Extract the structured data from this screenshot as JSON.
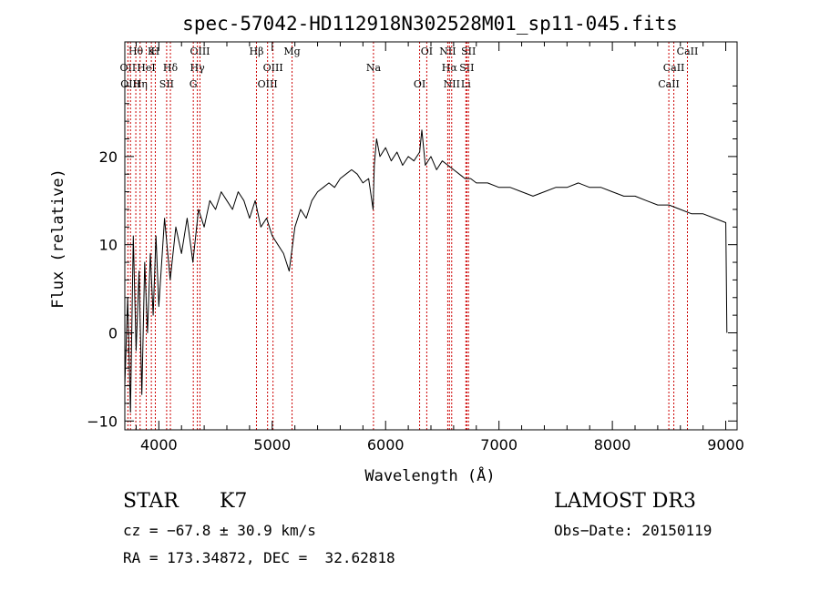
{
  "chart_data": {
    "type": "line",
    "title": "spec-57042-HD112918N302528M01_sp11-045.fits",
    "xlabel": "Wavelength (Å)",
    "ylabel": "Flux (relative)",
    "xlim": [
      3700,
      9100
    ],
    "ylim": [
      -11,
      33
    ],
    "xticks": [
      4000,
      5000,
      6000,
      7000,
      8000,
      9000
    ],
    "yticks": [
      -10,
      0,
      10,
      20
    ],
    "xtick_labels": [
      "4000",
      "5000",
      "6000",
      "7000",
      "8000",
      "9000"
    ],
    "ytick_labels": [
      "−10",
      "0",
      "10",
      "20"
    ],
    "grid": false,
    "line_color": "#000000",
    "marker_color": "#cc0000",
    "series": [
      {
        "name": "flux",
        "x": [
          3700,
          3725,
          3750,
          3775,
          3800,
          3825,
          3850,
          3875,
          3900,
          3925,
          3950,
          3975,
          4000,
          4050,
          4100,
          4150,
          4200,
          4250,
          4300,
          4350,
          4400,
          4450,
          4500,
          4550,
          4600,
          4650,
          4700,
          4750,
          4800,
          4850,
          4900,
          4950,
          5000,
          5050,
          5100,
          5150,
          5200,
          5250,
          5300,
          5350,
          5400,
          5450,
          5500,
          5550,
          5600,
          5650,
          5700,
          5750,
          5800,
          5850,
          5890,
          5900,
          5920,
          5950,
          6000,
          6050,
          6100,
          6150,
          6200,
          6250,
          6300,
          6320,
          6350,
          6400,
          6450,
          6500,
          6550,
          6600,
          6650,
          6700,
          6750,
          6800,
          6900,
          7000,
          7100,
          7200,
          7300,
          7400,
          7500,
          7600,
          7700,
          7800,
          7900,
          8000,
          8100,
          8200,
          8300,
          8400,
          8500,
          8600,
          8700,
          8800,
          8900,
          9000,
          9010
        ],
        "y": [
          -6,
          4,
          -9,
          11,
          -2,
          7,
          -7,
          8,
          0,
          9,
          2,
          11,
          3,
          13,
          6,
          12,
          9,
          13,
          8,
          14,
          12,
          15,
          14,
          16,
          15,
          14,
          16,
          15,
          13,
          15,
          12,
          13,
          11,
          10,
          9,
          7,
          12,
          14,
          13,
          15,
          16,
          16.5,
          17,
          16.5,
          17.5,
          18,
          18.5,
          18,
          17,
          17.5,
          14,
          19,
          22,
          20,
          21,
          19.5,
          20.5,
          19,
          20,
          19.5,
          20.5,
          23,
          19,
          20,
          18.5,
          19.5,
          19,
          18.5,
          18,
          17.5,
          17.5,
          17,
          17,
          16.5,
          16.5,
          16,
          15.5,
          16,
          16.5,
          16.5,
          17,
          16.5,
          16.5,
          16,
          15.5,
          15.5,
          15,
          14.5,
          14.5,
          14,
          13.5,
          13.5,
          13,
          12.5,
          0
        ]
      }
    ],
    "lines": [
      {
        "label": "Hθ",
        "x": 3797
      },
      {
        "label": "OII",
        "x": 3727
      },
      {
        "label": "OIII",
        "x": 3750
      },
      {
        "label": "K",
        "x": 3934
      },
      {
        "label": "HeI",
        "x": 3889
      },
      {
        "label": "Hη",
        "x": 3835
      },
      {
        "label": "H",
        "x": 3969
      },
      {
        "label": "Hδ",
        "x": 4102
      },
      {
        "label": "SII",
        "x": 4069
      },
      {
        "label": "OIII",
        "x": 4363
      },
      {
        "label": "Hγ",
        "x": 4340
      },
      {
        "label": "G",
        "x": 4304
      },
      {
        "label": "Hβ",
        "x": 4861
      },
      {
        "label": "OIII",
        "x": 5007
      },
      {
        "label": "OIII",
        "x": 4959
      },
      {
        "label": "Mg",
        "x": 5175
      },
      {
        "label": "Na",
        "x": 5893
      },
      {
        "label": "OI",
        "x": 6300
      },
      {
        "label": "OI",
        "x": 6363
      },
      {
        "label": "Hα",
        "x": 6563
      },
      {
        "label": "NII",
        "x": 6583
      },
      {
        "label": "NII",
        "x": 6548
      },
      {
        "label": "SII",
        "x": 6716
      },
      {
        "label": "Li",
        "x": 6708
      },
      {
        "label": "SII",
        "x": 6731
      },
      {
        "label": "CaII",
        "x": 8542
      },
      {
        "label": "CaII",
        "x": 8498
      },
      {
        "label": "CaII",
        "x": 8662
      }
    ]
  },
  "info": {
    "class": "STAR",
    "subclass": "K7",
    "survey": "LAMOST DR3",
    "cz": "cz = −67.8 ± 30.9 km/s",
    "obs_date": "Obs−Date: 20150119",
    "radec": "RA = 173.34872, DEC =  32.62818"
  }
}
